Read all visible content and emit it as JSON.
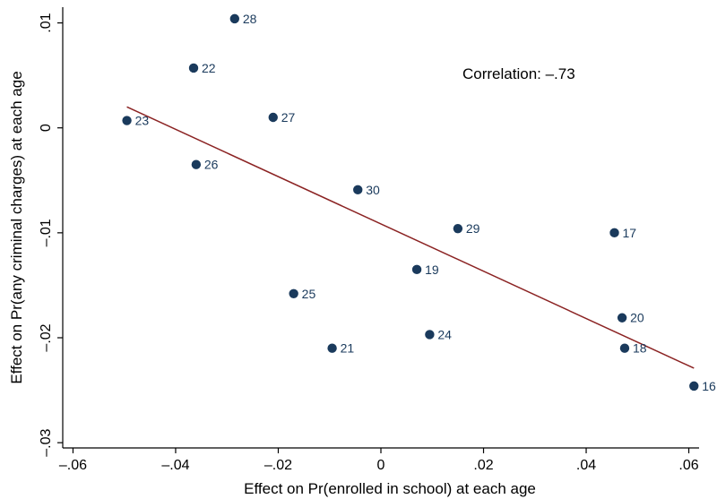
{
  "chart_data": {
    "type": "scatter",
    "title": "",
    "xlabel": "Effect on Pr(enrolled in school) at each age",
    "ylabel": "Effect on Pr(any criminal charges) at each age",
    "xlim": [
      -0.062,
      0.062
    ],
    "ylim": [
      -0.0305,
      0.0115
    ],
    "xticks": [
      -0.06,
      -0.04,
      -0.02,
      0,
      0.02,
      0.04,
      0.06
    ],
    "xtick_labels": [
      "–.06",
      "–.04",
      "–.02",
      "0",
      ".02",
      ".04",
      ".06"
    ],
    "yticks": [
      -0.03,
      -0.02,
      -0.01,
      0,
      0.01
    ],
    "ytick_labels": [
      "–.03",
      "–.02",
      "–.01",
      "0",
      ".01"
    ],
    "points": [
      {
        "label": "28",
        "x": -0.0285,
        "y": 0.0104
      },
      {
        "label": "22",
        "x": -0.0365,
        "y": 0.0057
      },
      {
        "label": "27",
        "x": -0.021,
        "y": 0.001
      },
      {
        "label": "23",
        "x": -0.0495,
        "y": 0.0007
      },
      {
        "label": "26",
        "x": -0.036,
        "y": -0.0035
      },
      {
        "label": "30",
        "x": -0.0045,
        "y": -0.0059
      },
      {
        "label": "29",
        "x": 0.015,
        "y": -0.0096
      },
      {
        "label": "17",
        "x": 0.0455,
        "y": -0.01
      },
      {
        "label": "19",
        "x": 0.007,
        "y": -0.0135
      },
      {
        "label": "25",
        "x": -0.017,
        "y": -0.0158
      },
      {
        "label": "20",
        "x": 0.047,
        "y": -0.0181
      },
      {
        "label": "24",
        "x": 0.0095,
        "y": -0.0197
      },
      {
        "label": "21",
        "x": -0.0095,
        "y": -0.021
      },
      {
        "label": "18",
        "x": 0.0475,
        "y": -0.021
      },
      {
        "label": "16",
        "x": 0.061,
        "y": -0.0246
      }
    ],
    "fit_line": {
      "x": [
        -0.0495,
        0.061
      ],
      "y": [
        0.002,
        -0.0229
      ]
    },
    "annotation": "Correlation:  –.73",
    "colors": {
      "points": "#1a3a5c",
      "labels": "#1a3a5c",
      "fit_line": "#8b2323"
    },
    "grid": false,
    "legend": "none"
  }
}
